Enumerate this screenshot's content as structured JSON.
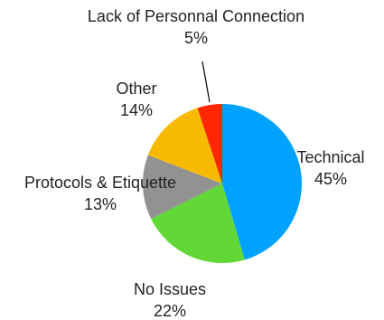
{
  "chart_data": {
    "type": "pie",
    "title": "",
    "slices": [
      {
        "label": "Technical",
        "value": 45,
        "value_text": "45%",
        "color": "#00A2FF"
      },
      {
        "label": "No Issues",
        "value": 22,
        "value_text": "22%",
        "color": "#61D836"
      },
      {
        "label": "Protocols & Etiquette",
        "value": 13,
        "value_text": "13%",
        "color": "#929292"
      },
      {
        "label": "Other",
        "value": 14,
        "value_text": "14%",
        "color": "#F8BA00"
      },
      {
        "label": "Lack of Personnal Connection",
        "value": 5,
        "value_text": "5%",
        "color": "#FF2600"
      }
    ],
    "start_angle": "12 o'clock",
    "direction": "clockwise",
    "legend": "none"
  }
}
